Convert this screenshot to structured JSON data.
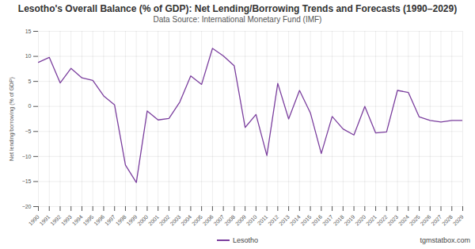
{
  "chart_data": {
    "type": "line",
    "title": "Lesotho's Overall Balance (% of GDP): Net Lending/Borrowing Trends and Forecasts (1990–2029)",
    "subtitle": "Data Source: International Monetary Fund (IMF)",
    "y_label": "Net lending/borrowing (% of GDP)",
    "x": [
      1990,
      1991,
      1992,
      1993,
      1994,
      1995,
      1996,
      1997,
      1998,
      1999,
      2000,
      2001,
      2002,
      2003,
      2004,
      2005,
      2006,
      2007,
      2008,
      2009,
      2010,
      2011,
      2012,
      2013,
      2014,
      2015,
      2016,
      2017,
      2018,
      2019,
      2020,
      2021,
      2022,
      2023,
      2024,
      2025,
      2026,
      2027,
      2028,
      2029
    ],
    "series": [
      {
        "name": "Lesotho",
        "color": "#7b3f9e",
        "values": [
          8.8,
          9.8,
          4.7,
          7.6,
          5.7,
          5.2,
          2.1,
          0.3,
          -11.7,
          -15.2,
          -0.9,
          -2.7,
          -2.4,
          0.9,
          6.1,
          4.4,
          11.6,
          10.1,
          8.1,
          -4.2,
          -1.6,
          -9.8,
          4.6,
          -2.5,
          3.2,
          -1.3,
          -9.4,
          -2.0,
          -4.5,
          -5.7,
          0.0,
          -5.3,
          -5.1,
          3.2,
          2.8,
          -2.1,
          -2.8,
          -3.1,
          -2.8,
          -2.8
        ]
      }
    ],
    "xlim": [
      1990,
      2029
    ],
    "xticks": [
      1990,
      1991,
      1992,
      1993,
      1994,
      1995,
      1996,
      1997,
      1998,
      1999,
      2000,
      2001,
      2002,
      2003,
      2004,
      2005,
      2006,
      2007,
      2008,
      2009,
      2010,
      2011,
      2012,
      2013,
      2014,
      2015,
      2016,
      2017,
      2018,
      2019,
      2020,
      2021,
      2022,
      2023,
      2024,
      2025,
      2026,
      2027,
      2028,
      2029
    ],
    "ylim": [
      -20,
      15
    ],
    "yticks": [
      -20,
      -15,
      -10,
      -5,
      0,
      5,
      10,
      15
    ],
    "grid": true,
    "legend": "bottom",
    "annotations": [
      "tgmstatbox.com"
    ]
  }
}
